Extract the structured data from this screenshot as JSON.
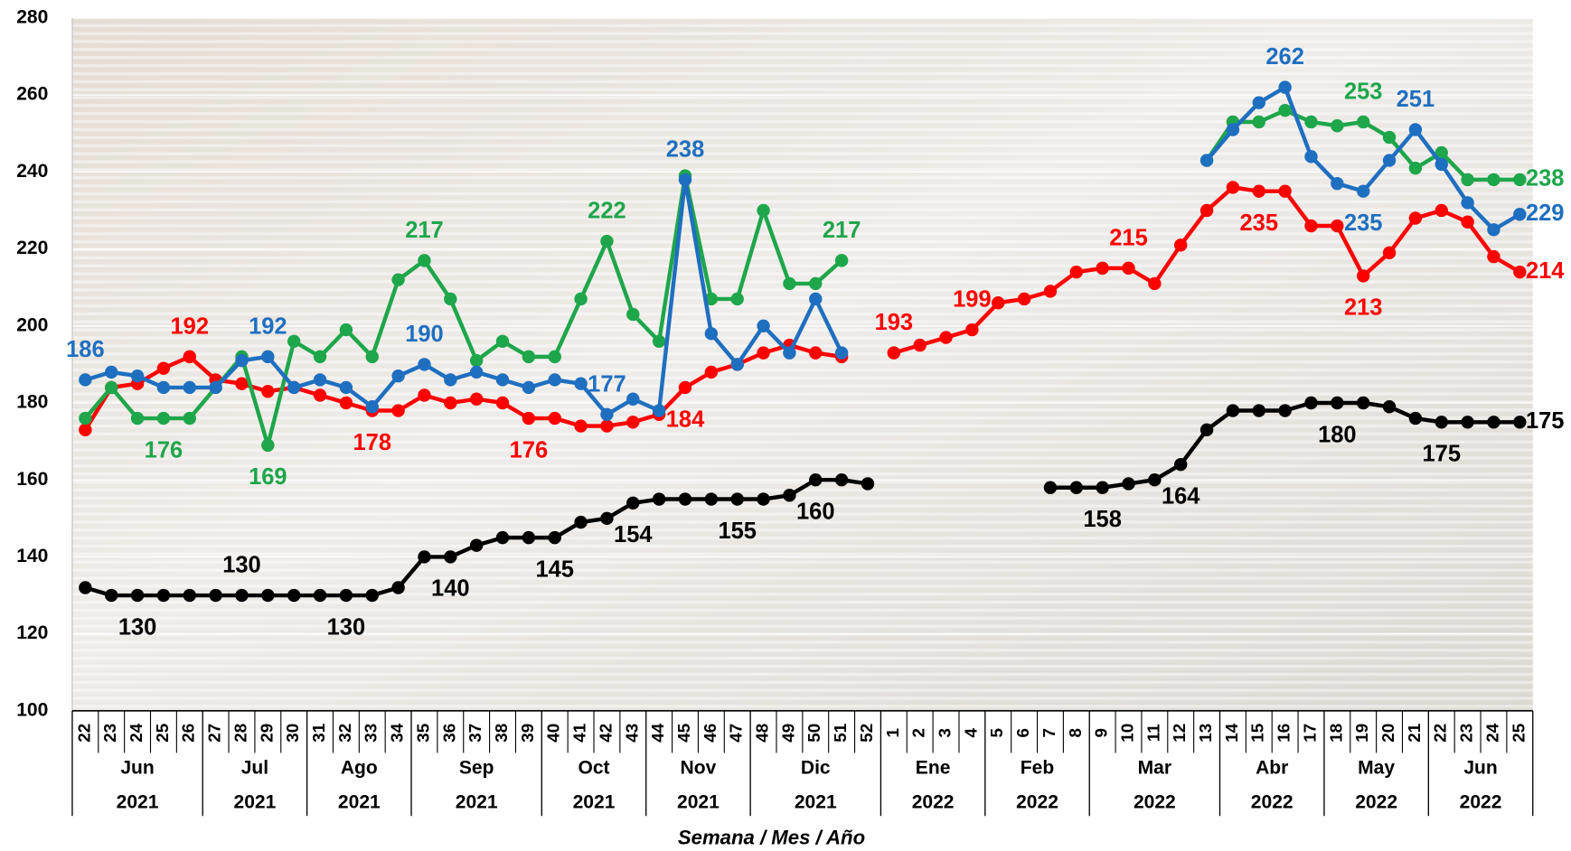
{
  "chart_data": {
    "type": "line",
    "x_axis_label": "Semana / Mes / Año",
    "ylim": [
      100,
      280
    ],
    "yticks": [
      100,
      120,
      140,
      160,
      180,
      200,
      220,
      240,
      260,
      280
    ],
    "grid": true,
    "groups": [
      {
        "month": "Jun",
        "year": "2021",
        "weeks": [
          "22",
          "23",
          "24",
          "25",
          "26"
        ]
      },
      {
        "month": "Jul",
        "year": "2021",
        "weeks": [
          "27",
          "28",
          "29",
          "30"
        ]
      },
      {
        "month": "Ago",
        "year": "2021",
        "weeks": [
          "31",
          "32",
          "33",
          "34"
        ]
      },
      {
        "month": "Sep",
        "year": "2021",
        "weeks": [
          "35",
          "36",
          "37",
          "38",
          "39"
        ]
      },
      {
        "month": "Oct",
        "year": "2021",
        "weeks": [
          "40",
          "41",
          "42",
          "43"
        ]
      },
      {
        "month": "Nov",
        "year": "2021",
        "weeks": [
          "44",
          "45",
          "46",
          "47"
        ]
      },
      {
        "month": "Dic",
        "year": "2021",
        "weeks": [
          "48",
          "49",
          "50",
          "51",
          "52"
        ]
      },
      {
        "month": "Ene",
        "year": "2022",
        "weeks": [
          "1",
          "2",
          "3",
          "4"
        ]
      },
      {
        "month": "Feb",
        "year": "2022",
        "weeks": [
          "5",
          "6",
          "7",
          "8"
        ]
      },
      {
        "month": "Mar",
        "year": "2022",
        "weeks": [
          "9",
          "10",
          "11",
          "12",
          "13"
        ]
      },
      {
        "month": "Abr",
        "year": "2022",
        "weeks": [
          "14",
          "15",
          "16",
          "17"
        ]
      },
      {
        "month": "May",
        "year": "2022",
        "weeks": [
          "18",
          "19",
          "20",
          "21"
        ]
      },
      {
        "month": "Jun",
        "year": "2022",
        "weeks": [
          "22",
          "23",
          "24",
          "25"
        ]
      }
    ],
    "series": [
      {
        "color": "#000000",
        "values": [
          132,
          130,
          130,
          130,
          130,
          130,
          130,
          130,
          130,
          130,
          130,
          130,
          132,
          140,
          140,
          143,
          145,
          145,
          145,
          149,
          150,
          154,
          155,
          155,
          155,
          155,
          155,
          156,
          160,
          160,
          159,
          null,
          null,
          null,
          null,
          null,
          null,
          158,
          158,
          158,
          159,
          160,
          164,
          173,
          178,
          178,
          178,
          180,
          180,
          180,
          179,
          176,
          175,
          175,
          175,
          175
        ],
        "value_labels": [
          null,
          null,
          "130",
          null,
          null,
          null,
          "130",
          null,
          null,
          null,
          "130",
          null,
          null,
          null,
          "140",
          null,
          null,
          null,
          "145",
          null,
          null,
          "154",
          null,
          null,
          null,
          "155",
          null,
          null,
          "160",
          null,
          null,
          null,
          null,
          null,
          null,
          null,
          null,
          null,
          null,
          "158",
          null,
          null,
          "164",
          null,
          null,
          null,
          null,
          null,
          "180",
          null,
          null,
          null,
          "175",
          null,
          null,
          "175"
        ]
      },
      {
        "color": "#ff0000",
        "values": [
          173,
          184,
          185,
          189,
          192,
          186,
          185,
          183,
          184,
          182,
          180,
          178,
          178,
          182,
          180,
          181,
          180,
          176,
          176,
          174,
          174,
          175,
          177,
          184,
          188,
          190,
          193,
          195,
          193,
          192,
          null,
          193,
          195,
          197,
          199,
          206,
          207,
          209,
          214,
          215,
          215,
          211,
          221,
          230,
          236,
          235,
          235,
          226,
          226,
          213,
          219,
          228,
          230,
          227,
          218,
          214
        ],
        "value_labels": [
          null,
          null,
          null,
          null,
          "192",
          null,
          null,
          null,
          null,
          null,
          null,
          "178",
          null,
          null,
          null,
          null,
          null,
          "176",
          null,
          null,
          null,
          null,
          null,
          "184",
          null,
          null,
          null,
          null,
          null,
          null,
          null,
          "193",
          null,
          null,
          "199",
          null,
          null,
          null,
          null,
          null,
          "215",
          null,
          null,
          null,
          null,
          "235",
          null,
          null,
          null,
          "213",
          null,
          null,
          null,
          null,
          null,
          "214"
        ]
      },
      {
        "color": "#1ea64b",
        "values": [
          176,
          184,
          176,
          176,
          176,
          184,
          192,
          169,
          196,
          192,
          199,
          192,
          212,
          217,
          207,
          191,
          196,
          192,
          192,
          207,
          222,
          203,
          196,
          239,
          207,
          207,
          230,
          211,
          211,
          217,
          null,
          null,
          null,
          null,
          null,
          null,
          null,
          null,
          null,
          null,
          null,
          null,
          null,
          243,
          253,
          253,
          256,
          253,
          252,
          253,
          249,
          241,
          245,
          238,
          238,
          238
        ],
        "value_labels": [
          null,
          null,
          null,
          "176",
          null,
          null,
          null,
          "169",
          null,
          null,
          null,
          null,
          null,
          "217",
          null,
          null,
          null,
          null,
          null,
          null,
          "222",
          null,
          null,
          null,
          null,
          null,
          null,
          null,
          null,
          "217",
          null,
          null,
          null,
          null,
          null,
          null,
          null,
          null,
          null,
          null,
          null,
          null,
          null,
          null,
          null,
          null,
          null,
          null,
          null,
          "253",
          null,
          null,
          null,
          null,
          null,
          "238"
        ]
      },
      {
        "color": "#1f6fc0",
        "values": [
          186,
          188,
          187,
          184,
          184,
          184,
          191,
          192,
          184,
          186,
          184,
          179,
          187,
          190,
          186,
          188,
          186,
          184,
          186,
          185,
          177,
          181,
          178,
          238,
          198,
          190,
          200,
          193,
          207,
          193,
          null,
          null,
          null,
          null,
          null,
          null,
          null,
          null,
          null,
          null,
          null,
          null,
          null,
          243,
          251,
          258,
          262,
          244,
          237,
          235,
          243,
          251,
          242,
          232,
          225,
          229
        ],
        "value_labels": [
          "186",
          null,
          null,
          null,
          null,
          null,
          null,
          "192",
          null,
          null,
          null,
          null,
          null,
          "190",
          null,
          null,
          null,
          null,
          null,
          null,
          "177",
          null,
          null,
          "238",
          null,
          null,
          null,
          null,
          null,
          null,
          null,
          null,
          null,
          null,
          null,
          null,
          null,
          null,
          null,
          null,
          null,
          null,
          null,
          null,
          null,
          null,
          "262",
          null,
          null,
          "235",
          null,
          "251",
          null,
          null,
          null,
          "229"
        ]
      }
    ]
  }
}
